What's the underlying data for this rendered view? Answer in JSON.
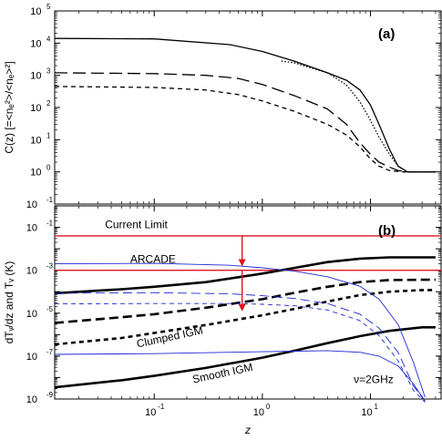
{
  "chart_data": [
    {
      "panel": "a",
      "type": "line",
      "tag": "(a)",
      "ylabel": "C(z)  [=<nₑ²>/<nₑ>²]",
      "xlabel": "",
      "xscale": "log",
      "yscale": "log",
      "xlim": [
        0.012,
        45
      ],
      "ylim": [
        0.1,
        100000
      ],
      "yticks": [
        {
          "mant": "10",
          "exp": "-1"
        },
        {
          "mant": "10",
          "exp": "0"
        },
        {
          "mant": "10",
          "exp": "1"
        },
        {
          "mant": "10",
          "exp": "2"
        },
        {
          "mant": "10",
          "exp": "3"
        },
        {
          "mant": "10",
          "exp": "4"
        },
        {
          "mant": "10",
          "exp": "5"
        }
      ],
      "series": [
        {
          "style": "solid",
          "x": [
            0.012,
            0.1,
            0.5,
            1,
            2,
            4,
            6,
            8,
            10,
            12,
            15,
            18,
            22,
            30,
            40
          ],
          "y": [
            14000,
            13500,
            9000,
            5500,
            2700,
            1200,
            700,
            350,
            120,
            30,
            5,
            1.5,
            1,
            1,
            1
          ]
        },
        {
          "style": "dotted",
          "x": [
            1.5,
            2,
            4,
            6,
            8,
            10,
            12,
            15,
            18,
            22,
            30,
            40
          ],
          "y": [
            2800,
            2400,
            1200,
            500,
            150,
            40,
            12,
            3.5,
            1.5,
            1,
            1,
            1
          ]
        },
        {
          "style": "longdash",
          "x": [
            0.012,
            0.1,
            0.3,
            0.6,
            1,
            2,
            4,
            6,
            8,
            10,
            12,
            15,
            18,
            22,
            30,
            40
          ],
          "y": [
            1200,
            1130,
            1000,
            800,
            520,
            230,
            90,
            30,
            8,
            3.5,
            2,
            1.4,
            1.1,
            1,
            1,
            1
          ]
        },
        {
          "style": "shortdash",
          "x": [
            0.012,
            0.1,
            0.3,
            0.6,
            1,
            2,
            4,
            6,
            8,
            10,
            12,
            15,
            20,
            30,
            40
          ],
          "y": [
            450,
            420,
            350,
            250,
            160,
            75,
            30,
            14,
            6,
            2.5,
            1.5,
            1.1,
            1,
            1,
            1
          ]
        }
      ]
    },
    {
      "panel": "b",
      "type": "line",
      "tag": "(b)",
      "ylabel": "dTᵥ/dz and Tᵥ (K)",
      "xlabel": "z",
      "xscale": "log",
      "yscale": "log",
      "xlim": [
        0.012,
        45
      ],
      "ylim": [
        1e-09,
        1
      ],
      "xticks": [
        {
          "value": 0.1,
          "mant": "10",
          "exp": "-1"
        },
        {
          "value": 1,
          "mant": "10",
          "exp": "0"
        },
        {
          "value": 10,
          "mant": "10",
          "exp": "1"
        }
      ],
      "yticks": [
        {
          "value": 0.1,
          "mant": "10",
          "exp": "-1"
        },
        {
          "value": 0.001,
          "mant": "10",
          "exp": "-3"
        },
        {
          "value": 1e-05,
          "mant": "10",
          "exp": "-5"
        },
        {
          "value": 1e-07,
          "mant": "10",
          "exp": "-7"
        },
        {
          "value": 1e-09,
          "mant": "10",
          "exp": "-9"
        }
      ],
      "hlines": [
        {
          "name": "Current Limit",
          "y": 0.04,
          "color": "#e0141e"
        },
        {
          "name": "ARCADE",
          "y": 0.001,
          "color": "#e0141e"
        }
      ],
      "arrows": [
        {
          "x": 0.65,
          "y_from": 0.04,
          "y_to": 0.0015,
          "color": "#e0141e"
        },
        {
          "x": 0.65,
          "y_from": 0.001,
          "y_to": 1.2e-05,
          "color": "#e0141e"
        }
      ],
      "annotations": [
        {
          "text": "Current Limit",
          "x": 0.035,
          "y": 0.09
        },
        {
          "text": "ARCADE",
          "x": 0.06,
          "y": 0.0022
        },
        {
          "text": "Clumped IGM",
          "x": 0.07,
          "y": 2.5e-07
        },
        {
          "text": "Smooth IGM",
          "x": 0.23,
          "y": 5.5e-09
        },
        {
          "text": "ν=2GHz",
          "x": 7,
          "y": 5.5e-09
        }
      ],
      "series": [
        {
          "style": "thick-solid",
          "color": "#000000",
          "x": [
            0.012,
            0.05,
            0.1,
            0.3,
            1,
            2,
            4,
            8,
            15,
            30,
            40
          ],
          "y": [
            8.5e-05,
            0.00013,
            0.00017,
            0.00028,
            0.0007,
            0.0013,
            0.0024,
            0.0035,
            0.004,
            0.004,
            0.004
          ]
        },
        {
          "style": "thick-dash",
          "color": "#000000",
          "x": [
            0.012,
            0.05,
            0.1,
            0.3,
            1,
            2,
            4,
            8,
            15,
            30,
            40
          ],
          "y": [
            3.5e-06,
            6.5e-06,
            9e-06,
            1.8e-05,
            4.5e-05,
            9e-05,
            0.00017,
            0.00028,
            0.00035,
            0.00036,
            0.00036
          ]
        },
        {
          "style": "thick-shortdash",
          "color": "#000000",
          "x": [
            0.012,
            0.05,
            0.1,
            0.3,
            1,
            2,
            4,
            8,
            15,
            30,
            40
          ],
          "y": [
            3.5e-07,
            7e-07,
            1.2e-06,
            2.8e-06,
            8e-06,
            1.6e-05,
            3.5e-05,
            7e-05,
            0.0001,
            0.00012,
            0.00012
          ]
        },
        {
          "style": "thick-solid",
          "color": "#000000",
          "x": [
            0.012,
            0.05,
            0.1,
            0.3,
            1,
            2,
            4,
            8,
            15,
            30,
            40
          ],
          "y": [
            3.5e-09,
            7.5e-09,
            1.2e-08,
            2.8e-08,
            8.5e-08,
            1.8e-07,
            4e-07,
            8.5e-07,
            1.5e-06,
            2.2e-06,
            2.2e-06
          ]
        },
        {
          "style": "thin-solid",
          "color": "#1e28d2",
          "x": [
            0.012,
            0.1,
            0.5,
            1,
            2,
            4,
            8,
            12,
            18,
            25,
            32
          ],
          "y": [
            0.002,
            0.0021,
            0.0017,
            0.0013,
            0.0009,
            0.0005,
            0.00018,
            4.5e-05,
            3e-06,
            5e-08,
            1.2e-09
          ]
        },
        {
          "style": "thin-dash",
          "color": "#1e28d2",
          "x": [
            0.012,
            0.1,
            0.5,
            1,
            2,
            4,
            8,
            12,
            18,
            25,
            32
          ],
          "y": [
            8.5e-05,
            9e-05,
            8e-05,
            6.5e-05,
            4.8e-05,
            2.8e-05,
            9e-06,
            2e-06,
            1.5e-07,
            4e-09,
            8e-10
          ]
        },
        {
          "style": "thin-shortdash",
          "color": "#1e28d2",
          "x": [
            0.012,
            0.1,
            0.5,
            1,
            2,
            4,
            8,
            12,
            18,
            25,
            32
          ],
          "y": [
            2.7e-05,
            2.8e-05,
            2.8e-05,
            2.6e-05,
            2.2e-05,
            1.4e-05,
            4.5e-06,
            9e-07,
            6e-08,
            2.5e-09,
            7e-10
          ]
        },
        {
          "style": "thin-solid",
          "color": "#1e28d2",
          "x": [
            0.012,
            0.1,
            0.5,
            1,
            2,
            4,
            8,
            12,
            18,
            25,
            32
          ],
          "y": [
            1.2e-07,
            1.3e-07,
            1.5e-07,
            1.6e-07,
            1.7e-07,
            1.8e-07,
            1.5e-07,
            1e-07,
            3.5e-08,
            5e-09,
            8e-10
          ]
        }
      ]
    }
  ]
}
